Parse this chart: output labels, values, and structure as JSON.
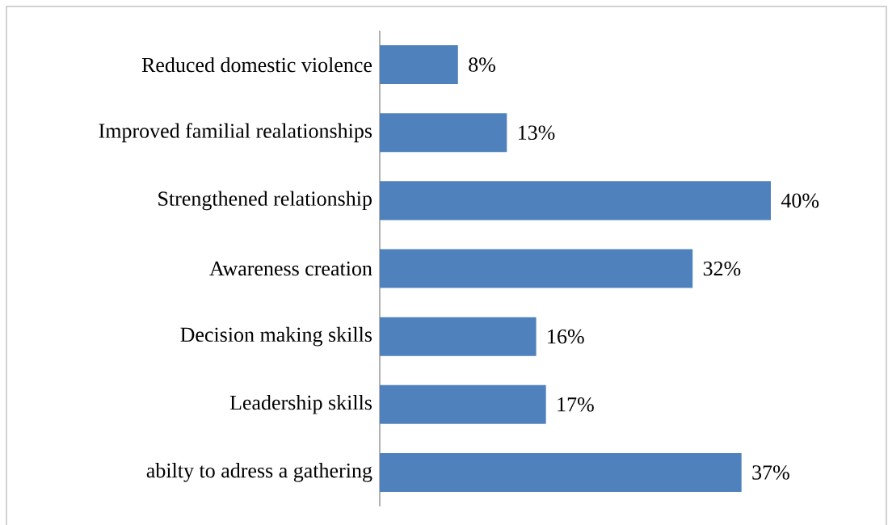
{
  "chart_data": {
    "type": "bar",
    "orientation": "horizontal",
    "categories": [
      "Reduced domestic violence",
      "Improved familial realationships",
      "Strengthened relationship",
      "Awareness creation",
      "Decision making skills",
      "Leadership skills",
      "abilty to adress a gathering"
    ],
    "values": [
      8,
      13,
      40,
      32,
      16,
      17,
      37
    ],
    "value_labels": [
      "8%",
      "13%",
      "40%",
      "32%",
      "16%",
      "17%",
      "37%"
    ],
    "color": "#4f81bd"
  }
}
